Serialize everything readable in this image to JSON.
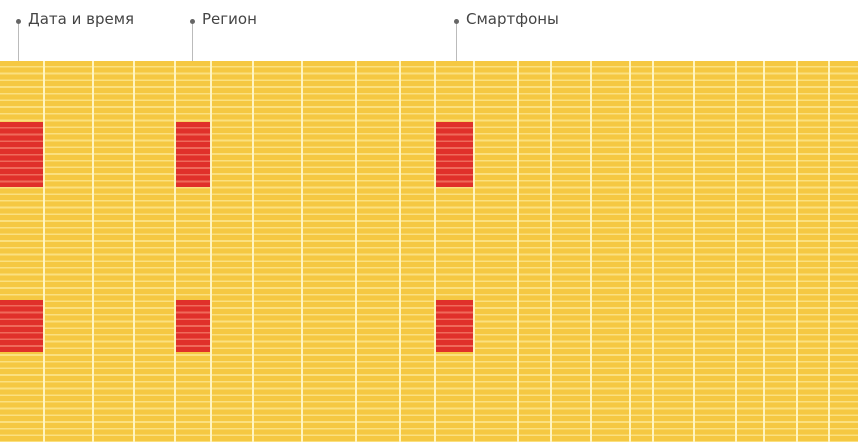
{
  "columns": {
    "labels": [
      "Дата и время",
      "Регион",
      "Смартфоны"
    ]
  },
  "colors": {
    "cell": "#f5c842",
    "highlight": "#e0302a"
  }
}
